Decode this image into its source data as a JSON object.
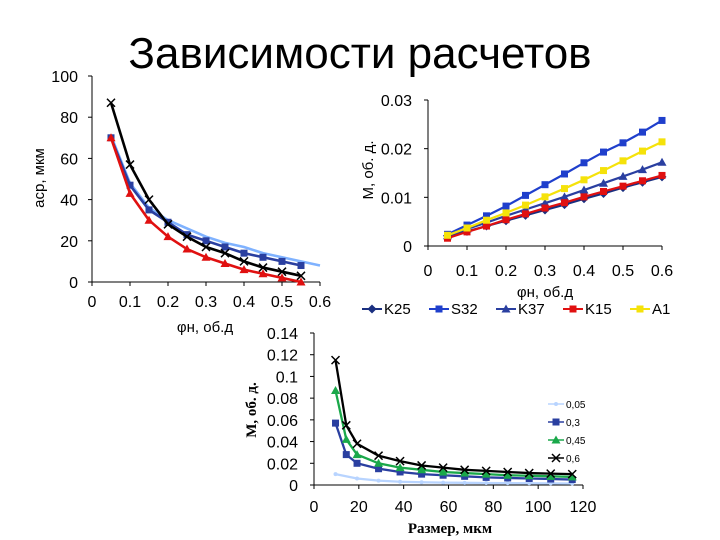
{
  "page_title": "Зависимости расчетов",
  "chart_data": [
    {
      "id": "chart1",
      "type": "line",
      "xlabel": "φн, об.д",
      "ylabel": "aср, мкм",
      "xlim": [
        0,
        0.6
      ],
      "ylim": [
        0,
        100
      ],
      "x_ticks": [
        "0",
        "0.1",
        "0.2",
        "0.3",
        "0.4",
        "0.5",
        "0.6"
      ],
      "y_ticks": [
        "0",
        "20",
        "40",
        "60",
        "80",
        "100"
      ],
      "grid": false,
      "series": [
        {
          "color": "#7fb2ff",
          "marker": "none",
          "x": [
            0.05,
            0.1,
            0.15,
            0.2,
            0.25,
            0.3,
            0.35,
            0.4,
            0.45,
            0.5,
            0.55,
            0.6
          ],
          "y": [
            71,
            48,
            36,
            30,
            26,
            22,
            19,
            17,
            14,
            12,
            10,
            8
          ]
        },
        {
          "color": "#2a3fa0",
          "marker": "square",
          "x": [
            0.05,
            0.1,
            0.15,
            0.2,
            0.25,
            0.3,
            0.35,
            0.4,
            0.45,
            0.5,
            0.55
          ],
          "y": [
            70,
            47,
            35,
            29,
            23,
            20,
            17,
            14,
            12,
            10,
            8
          ]
        },
        {
          "color": "#000000",
          "marker": "x",
          "x": [
            0.05,
            0.1,
            0.15,
            0.2,
            0.25,
            0.3,
            0.35,
            0.4,
            0.45,
            0.5,
            0.55
          ],
          "y": [
            87,
            57,
            40,
            28,
            22,
            17,
            14,
            10,
            7,
            5,
            3
          ]
        },
        {
          "color": "#e01010",
          "marker": "triangle",
          "x": [
            0.05,
            0.1,
            0.15,
            0.2,
            0.25,
            0.3,
            0.35,
            0.4,
            0.45,
            0.5,
            0.55
          ],
          "y": [
            70,
            43,
            30,
            22,
            16,
            12,
            9,
            6,
            4,
            2,
            0
          ]
        }
      ]
    },
    {
      "id": "chart2",
      "type": "line",
      "xlabel": "φн, об.д",
      "ylabel": "M, об. д.",
      "xlim": [
        0,
        0.6
      ],
      "ylim": [
        0,
        0.03
      ],
      "x_ticks": [
        "0",
        "0.1",
        "0.2",
        "0.3",
        "0.4",
        "0.5",
        "0.6"
      ],
      "y_ticks": [
        "0",
        "0.01",
        "0.02",
        "0.03"
      ],
      "grid": false,
      "legend_position": "bottom",
      "series": [
        {
          "name": "K25",
          "color": "#1a2f80",
          "marker": "diamond",
          "x": [
            0.05,
            0.1,
            0.15,
            0.2,
            0.25,
            0.3,
            0.35,
            0.4,
            0.45,
            0.5,
            0.55,
            0.6
          ],
          "y": [
            0.0021,
            0.003,
            0.0041,
            0.0052,
            0.0063,
            0.0074,
            0.0085,
            0.0097,
            0.0108,
            0.012,
            0.0131,
            0.0142
          ]
        },
        {
          "name": "S32",
          "color": "#1f3fcc",
          "marker": "square",
          "x": [
            0.05,
            0.1,
            0.15,
            0.2,
            0.25,
            0.3,
            0.35,
            0.4,
            0.45,
            0.5,
            0.55,
            0.6
          ],
          "y": [
            0.0024,
            0.0043,
            0.0062,
            0.0082,
            0.0104,
            0.0126,
            0.0148,
            0.0171,
            0.0193,
            0.0212,
            0.0234,
            0.0258
          ]
        },
        {
          "name": "K37",
          "color": "#2a3fa0",
          "marker": "triangle",
          "x": [
            0.05,
            0.1,
            0.15,
            0.2,
            0.25,
            0.3,
            0.35,
            0.4,
            0.45,
            0.5,
            0.55,
            0.6
          ],
          "y": [
            0.0021,
            0.0035,
            0.0048,
            0.0062,
            0.0075,
            0.0088,
            0.0101,
            0.0115,
            0.0129,
            0.0143,
            0.0157,
            0.0172
          ]
        },
        {
          "name": "K15",
          "color": "#e01010",
          "marker": "square",
          "x": [
            0.05,
            0.1,
            0.15,
            0.2,
            0.25,
            0.3,
            0.35,
            0.4,
            0.45,
            0.5,
            0.55,
            0.6
          ],
          "y": [
            0.0016,
            0.0029,
            0.0041,
            0.0054,
            0.0066,
            0.0078,
            0.0089,
            0.0101,
            0.0112,
            0.0123,
            0.0134,
            0.0145
          ]
        },
        {
          "name": "A1",
          "color": "#f5e20a",
          "marker": "square",
          "x": [
            0.05,
            0.1,
            0.15,
            0.2,
            0.25,
            0.3,
            0.35,
            0.4,
            0.45,
            0.5,
            0.55,
            0.6
          ],
          "y": [
            0.0022,
            0.0037,
            0.0053,
            0.0068,
            0.0084,
            0.0101,
            0.0118,
            0.0136,
            0.0155,
            0.0175,
            0.0195,
            0.0214
          ]
        }
      ]
    },
    {
      "id": "chart3",
      "type": "line",
      "xlabel": "Размер, мкм",
      "ylabel": "M, об. д.",
      "xlim": [
        0,
        125
      ],
      "ylim": [
        0,
        0.14
      ],
      "x_ticks": [
        "0",
        "20",
        "40",
        "60",
        "80",
        "100",
        "120"
      ],
      "y_ticks": [
        "0",
        "0.02",
        "0.04",
        "0.06",
        "0.08",
        "0.1",
        "0.12",
        "0.14"
      ],
      "grid": false,
      "legend_position": "right",
      "series": [
        {
          "name": "0,05",
          "color": "#b8d4ff",
          "marker": "dot",
          "x": [
            10,
            20,
            30,
            40,
            50,
            60,
            70,
            80,
            90,
            100,
            110,
            120
          ],
          "y": [
            0.01,
            0.006,
            0.004,
            0.003,
            0.0025,
            0.0022,
            0.002,
            0.0018,
            0.0017,
            0.0016,
            0.0015,
            0.0014
          ]
        },
        {
          "name": "0,3",
          "color": "#2a3fa0",
          "marker": "square",
          "x": [
            10,
            15,
            20,
            30,
            40,
            50,
            60,
            70,
            80,
            90,
            100,
            110,
            120
          ],
          "y": [
            0.057,
            0.028,
            0.02,
            0.015,
            0.012,
            0.01,
            0.009,
            0.008,
            0.007,
            0.0065,
            0.006,
            0.0055,
            0.005
          ]
        },
        {
          "name": "0,45",
          "color": "#1aa84a",
          "marker": "triangle",
          "x": [
            10,
            15,
            20,
            30,
            40,
            50,
            60,
            70,
            80,
            90,
            100,
            110,
            120
          ],
          "y": [
            0.087,
            0.042,
            0.028,
            0.02,
            0.016,
            0.014,
            0.012,
            0.011,
            0.01,
            0.009,
            0.0085,
            0.008,
            0.0075
          ]
        },
        {
          "name": "0,6",
          "color": "#000000",
          "marker": "x",
          "x": [
            10,
            15,
            20,
            30,
            40,
            50,
            60,
            70,
            80,
            90,
            100,
            110,
            120
          ],
          "y": [
            0.115,
            0.055,
            0.038,
            0.027,
            0.022,
            0.018,
            0.016,
            0.014,
            0.013,
            0.012,
            0.011,
            0.0105,
            0.01
          ]
        }
      ]
    }
  ]
}
